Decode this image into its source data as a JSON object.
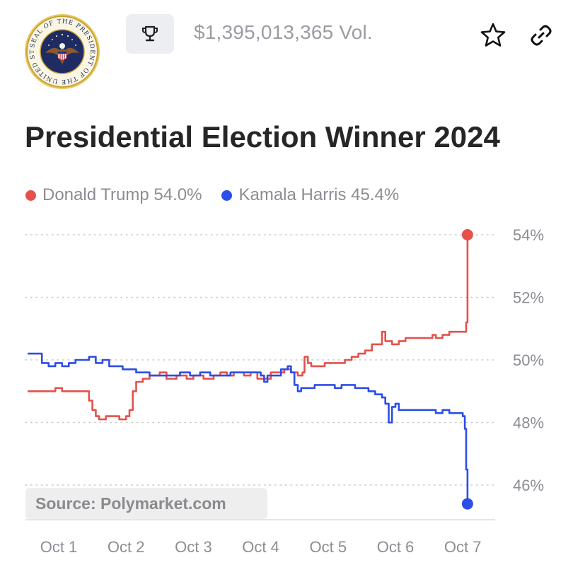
{
  "header": {
    "seal_icon": "presidential-seal-icon",
    "seal_text": "SEAL OF THE PRESIDENT OF THE UNITED STATES",
    "trophy_icon": "trophy-icon",
    "volume": "$1,395,013,365 Vol.",
    "star_icon": "star-icon",
    "link_icon": "link-icon"
  },
  "title": "Presidential Election Winner 2024",
  "legend": [
    {
      "label": "Donald Trump 54.0%",
      "color": "#e5514a"
    },
    {
      "label": "Kamala Harris 45.4%",
      "color": "#2c4de8"
    }
  ],
  "source": "Source: Polymarket.com",
  "chart_data": {
    "type": "line",
    "title": "Presidential Election Winner 2024",
    "xlabel": "",
    "ylabel": "",
    "x_ticks": [
      "Oct 1",
      "Oct 2",
      "Oct 3",
      "Oct 4",
      "Oct 5",
      "Oct 6",
      "Oct 7"
    ],
    "y_ticks": [
      "46%",
      "48%",
      "50%",
      "52%",
      "54%"
    ],
    "ylim": [
      45,
      54.3
    ],
    "xlim": [
      0.5,
      7.5
    ],
    "grid": "horizontal dotted",
    "legend_position": "top-left",
    "series": [
      {
        "name": "Donald Trump",
        "color": "#e5514a",
        "end_marker": true,
        "points": [
          [
            0.55,
            49.0
          ],
          [
            0.85,
            49.0
          ],
          [
            0.95,
            49.1
          ],
          [
            1.05,
            49.0
          ],
          [
            1.15,
            49.0
          ],
          [
            1.35,
            49.0
          ],
          [
            1.45,
            48.7
          ],
          [
            1.5,
            48.4
          ],
          [
            1.55,
            48.2
          ],
          [
            1.6,
            48.1
          ],
          [
            1.7,
            48.2
          ],
          [
            1.8,
            48.2
          ],
          [
            1.9,
            48.1
          ],
          [
            2.0,
            48.2
          ],
          [
            2.05,
            48.4
          ],
          [
            2.1,
            49.0
          ],
          [
            2.15,
            49.3
          ],
          [
            2.25,
            49.4
          ],
          [
            2.35,
            49.5
          ],
          [
            2.5,
            49.6
          ],
          [
            2.6,
            49.4
          ],
          [
            2.75,
            49.5
          ],
          [
            2.9,
            49.4
          ],
          [
            3.0,
            49.5
          ],
          [
            3.15,
            49.4
          ],
          [
            3.3,
            49.5
          ],
          [
            3.4,
            49.6
          ],
          [
            3.5,
            49.5
          ],
          [
            3.6,
            49.6
          ],
          [
            3.75,
            49.5
          ],
          [
            3.85,
            49.6
          ],
          [
            3.95,
            49.4
          ],
          [
            4.05,
            49.4
          ],
          [
            4.15,
            49.6
          ],
          [
            4.25,
            49.6
          ],
          [
            4.35,
            49.7
          ],
          [
            4.45,
            49.6
          ],
          [
            4.55,
            49.5
          ],
          [
            4.62,
            49.6
          ],
          [
            4.65,
            50.1
          ],
          [
            4.7,
            49.9
          ],
          [
            4.75,
            49.8
          ],
          [
            4.85,
            49.8
          ],
          [
            4.95,
            49.9
          ],
          [
            5.05,
            49.9
          ],
          [
            5.15,
            49.9
          ],
          [
            5.25,
            50.0
          ],
          [
            5.35,
            50.1
          ],
          [
            5.45,
            50.2
          ],
          [
            5.55,
            50.3
          ],
          [
            5.65,
            50.5
          ],
          [
            5.75,
            50.5
          ],
          [
            5.8,
            50.9
          ],
          [
            5.85,
            50.6
          ],
          [
            5.95,
            50.5
          ],
          [
            6.05,
            50.6
          ],
          [
            6.15,
            50.7
          ],
          [
            6.3,
            50.7
          ],
          [
            6.45,
            50.7
          ],
          [
            6.55,
            50.8
          ],
          [
            6.6,
            50.7
          ],
          [
            6.7,
            50.8
          ],
          [
            6.8,
            50.9
          ],
          [
            6.9,
            50.9
          ],
          [
            7.0,
            50.9
          ],
          [
            7.05,
            51.2
          ],
          [
            7.07,
            54.0
          ]
        ]
      },
      {
        "name": "Kamala Harris",
        "color": "#2c4de8",
        "end_marker": true,
        "points": [
          [
            0.55,
            50.2
          ],
          [
            0.65,
            50.2
          ],
          [
            0.75,
            49.9
          ],
          [
            0.85,
            49.8
          ],
          [
            0.95,
            49.9
          ],
          [
            1.05,
            49.8
          ],
          [
            1.15,
            49.9
          ],
          [
            1.25,
            50.0
          ],
          [
            1.35,
            50.0
          ],
          [
            1.45,
            50.1
          ],
          [
            1.55,
            49.9
          ],
          [
            1.65,
            50.0
          ],
          [
            1.75,
            49.8
          ],
          [
            1.85,
            49.8
          ],
          [
            1.95,
            49.7
          ],
          [
            2.05,
            49.7
          ],
          [
            2.15,
            49.6
          ],
          [
            2.25,
            49.6
          ],
          [
            2.35,
            49.5
          ],
          [
            2.5,
            49.5
          ],
          [
            2.65,
            49.5
          ],
          [
            2.8,
            49.6
          ],
          [
            2.95,
            49.5
          ],
          [
            3.1,
            49.6
          ],
          [
            3.25,
            49.5
          ],
          [
            3.4,
            49.5
          ],
          [
            3.55,
            49.6
          ],
          [
            3.7,
            49.6
          ],
          [
            3.85,
            49.6
          ],
          [
            4.0,
            49.5
          ],
          [
            4.05,
            49.3
          ],
          [
            4.1,
            49.5
          ],
          [
            4.2,
            49.5
          ],
          [
            4.3,
            49.7
          ],
          [
            4.4,
            49.8
          ],
          [
            4.45,
            49.6
          ],
          [
            4.5,
            49.2
          ],
          [
            4.55,
            49.0
          ],
          [
            4.6,
            49.1
          ],
          [
            4.7,
            49.1
          ],
          [
            4.8,
            49.2
          ],
          [
            4.9,
            49.2
          ],
          [
            5.0,
            49.2
          ],
          [
            5.1,
            49.1
          ],
          [
            5.2,
            49.2
          ],
          [
            5.3,
            49.2
          ],
          [
            5.4,
            49.1
          ],
          [
            5.5,
            49.1
          ],
          [
            5.6,
            49.0
          ],
          [
            5.7,
            48.9
          ],
          [
            5.8,
            48.8
          ],
          [
            5.85,
            48.6
          ],
          [
            5.9,
            48.0
          ],
          [
            5.95,
            48.5
          ],
          [
            6.0,
            48.6
          ],
          [
            6.05,
            48.4
          ],
          [
            6.15,
            48.4
          ],
          [
            6.3,
            48.4
          ],
          [
            6.45,
            48.4
          ],
          [
            6.6,
            48.3
          ],
          [
            6.7,
            48.4
          ],
          [
            6.8,
            48.3
          ],
          [
            6.95,
            48.3
          ],
          [
            7.0,
            48.2
          ],
          [
            7.03,
            47.8
          ],
          [
            7.05,
            46.5
          ],
          [
            7.07,
            45.4
          ]
        ]
      }
    ]
  }
}
